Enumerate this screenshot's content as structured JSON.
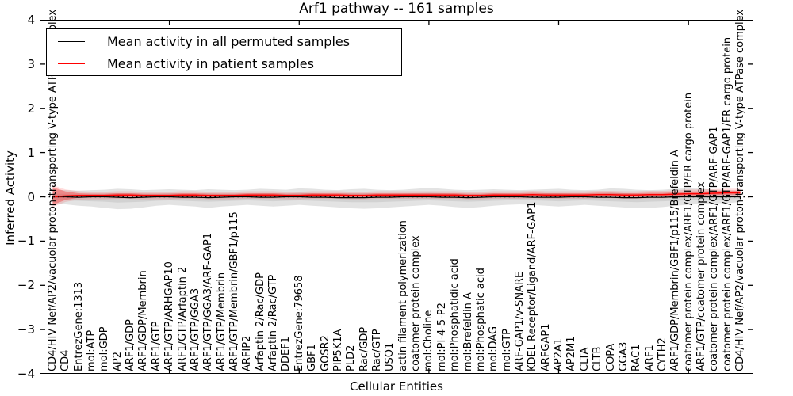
{
  "title": "Arf1 pathway -- 161 samples",
  "axes": {
    "ylabel": "Inferred Activity",
    "xlabel": "Cellular Entities",
    "ylim": [
      -4,
      4
    ],
    "xlim": [
      0,
      55
    ],
    "yticks": [
      {
        "v": 4,
        "label": "4"
      },
      {
        "v": 3,
        "label": "3"
      },
      {
        "v": 2,
        "label": "2"
      },
      {
        "v": 1,
        "label": "1"
      },
      {
        "v": 0,
        "label": "0"
      },
      {
        "v": -1,
        "label": "−1"
      },
      {
        "v": -2,
        "label": "−2"
      },
      {
        "v": -3,
        "label": "−3"
      },
      {
        "v": -4,
        "label": "−4"
      }
    ],
    "xticks": [
      10,
      20,
      30,
      40,
      50
    ],
    "grid": "off"
  },
  "legend": {
    "position": "upper left",
    "entries": [
      {
        "label": "Mean activity in all permuted samples",
        "color": "#000000"
      },
      {
        "label": "Mean activity in patient samples",
        "color": "#ff0000"
      }
    ]
  },
  "colors": {
    "permuted_line": "#000000",
    "patient_line": "#ff0000",
    "permuted_band_outer": "#e3e3e3",
    "permuted_band_inner": "#d2d2d2",
    "patient_band": "rgba(255,0,0,0.30)",
    "patient_halo": "rgba(255,0,0,0.13)"
  },
  "chart_data": {
    "type": "line",
    "title": "Arf1 pathway -- 161 samples",
    "xlabel": "Cellular Entities",
    "ylabel": "Inferred Activity",
    "ylim": [
      -4,
      4
    ],
    "legend_position": "upper left",
    "categories": [
      "CD4/HIV Nef/AP2/vacuolar proton-transporting V-type ATPase complex",
      "CD4",
      "EntrezGene:1313",
      "mol:ATP",
      "mol:GDP",
      "AP2",
      "ARF1/GDP",
      "ARF1/GDP/Membrin",
      "ARF1/GTP",
      "ARF1/GTP/ARHGAP10",
      "ARF1/GTP/Arfaptin 2",
      "ARF1/GTP/GGA3",
      "ARF1/GTP/GGA3/ARF-GAP1",
      "ARF1/GTP/Membrin",
      "ARF1/GTP/Membrin/GBF1/p115",
      "ARFIP2",
      "Arfaptin 2/Rac/GDP",
      "Arfaptin 2/Rac/GTP",
      "DDEF1",
      "EntrezGene:79658",
      "GBF1",
      "GOSR2",
      "PIP5K1A",
      "PLD2",
      "Rac/GDP",
      "Rac/GTP",
      "USO1",
      "actin filament polymerization",
      "coatomer protein complex",
      "mol:Choline",
      "mol:PI-4-5-P2",
      "mol:Phosphatidic acid",
      "mol:Brefeldin A",
      "mol:Phosphatic acid",
      "mol:DAG",
      "mol:GTP",
      "ARF-GAP1/v-SNARE",
      "KDEL Receptor/Ligand/ARF-GAP1",
      "ARFGAP1",
      "AP2A1",
      "AP2M1",
      "CLTA",
      "CLTB",
      "COPA",
      "GGA3",
      "RAC1",
      "ARF1",
      "CYTH2",
      "ARF1/GDP/Membrin/GBF1/p115/Brefeldin A",
      "coatomer protein complex/ARF1/GTP/ER cargo protein",
      "ARF1/GTP/coatomer protein complex",
      "coatomer protein complex/ARF1/GTP/ARF-GAP1",
      "coatomer protein complex/ARF1/GTP/ARF-GAP1/ER cargo protein",
      "CD4/HIV Nef/AP2/vacuolar proton-transporting V-type ATPase complex"
    ],
    "series": [
      {
        "name": "Mean activity in all permuted samples",
        "color": "#000000",
        "values": [
          0,
          0,
          -0.01,
          0,
          0,
          -0.01,
          -0.02,
          -0.01,
          0,
          0,
          -0.01,
          -0.01,
          -0.02,
          -0.01,
          0,
          0,
          -0.01,
          -0.01,
          0,
          0,
          -0.01,
          -0.01,
          -0.02,
          -0.02,
          -0.02,
          -0.01,
          -0.01,
          0,
          0,
          0,
          -0.01,
          -0.01,
          -0.02,
          -0.01,
          0,
          0,
          0,
          -0.01,
          -0.01,
          -0.01,
          0,
          0,
          -0.01,
          -0.01,
          -0.02,
          -0.02,
          -0.01,
          -0.01,
          0,
          0,
          0,
          0,
          0,
          0
        ]
      },
      {
        "name": "Mean activity in patient samples",
        "color": "#ff0000",
        "values": [
          0.0,
          0.02,
          0.03,
          0.03,
          0.03,
          0.04,
          0.04,
          0.03,
          0.03,
          0.03,
          0.04,
          0.04,
          0.03,
          0.03,
          0.03,
          0.04,
          0.04,
          0.04,
          0.03,
          0.03,
          0.04,
          0.04,
          0.04,
          0.03,
          0.03,
          0.04,
          0.04,
          0.04,
          0.04,
          0.04,
          0.04,
          0.04,
          0.03,
          0.03,
          0.04,
          0.04,
          0.04,
          0.05,
          0.04,
          0.04,
          0.04,
          0.04,
          0.05,
          0.05,
          0.04,
          0.04,
          0.05,
          0.05,
          0.06,
          0.07,
          0.07,
          0.08,
          0.09,
          0.09
        ]
      }
    ],
    "bands": {
      "permuted_outer": {
        "hi": [
          0.16,
          0.15,
          0.14,
          0.15,
          0.16,
          0.18,
          0.17,
          0.15,
          0.16,
          0.17,
          0.16,
          0.15,
          0.17,
          0.16,
          0.15,
          0.16,
          0.18,
          0.17,
          0.16,
          0.19,
          0.18,
          0.16,
          0.15,
          0.17,
          0.18,
          0.16,
          0.15,
          0.16,
          0.18,
          0.2,
          0.18,
          0.16,
          0.15,
          0.16,
          0.17,
          0.16,
          0.15,
          0.16,
          0.17,
          0.18,
          0.16,
          0.15,
          0.16,
          0.19,
          0.18,
          0.16,
          0.15,
          0.16,
          0.18,
          0.19,
          0.18,
          0.16,
          0.15,
          0.14
        ],
        "lo": [
          -0.14,
          -0.17,
          -0.2,
          -0.22,
          -0.25,
          -0.28,
          -0.27,
          -0.24,
          -0.2,
          -0.18,
          -0.2,
          -0.22,
          -0.25,
          -0.22,
          -0.2,
          -0.18,
          -0.2,
          -0.22,
          -0.2,
          -0.18,
          -0.2,
          -0.22,
          -0.24,
          -0.26,
          -0.27,
          -0.26,
          -0.24,
          -0.22,
          -0.2,
          -0.18,
          -0.2,
          -0.23,
          -0.25,
          -0.23,
          -0.2,
          -0.18,
          -0.17,
          -0.18,
          -0.2,
          -0.22,
          -0.2,
          -0.18,
          -0.2,
          -0.22,
          -0.24,
          -0.26,
          -0.25,
          -0.23,
          -0.2,
          -0.18,
          -0.16,
          -0.15,
          -0.14,
          -0.12
        ]
      },
      "permuted_inner": {
        "hi": [
          0.07,
          0.07,
          0.06,
          0.07,
          0.07,
          0.08,
          0.08,
          0.07,
          0.07,
          0.08,
          0.07,
          0.07,
          0.08,
          0.07,
          0.07,
          0.07,
          0.08,
          0.08,
          0.07,
          0.09,
          0.08,
          0.07,
          0.07,
          0.08,
          0.08,
          0.07,
          0.07,
          0.07,
          0.08,
          0.09,
          0.08,
          0.07,
          0.07,
          0.07,
          0.08,
          0.07,
          0.07,
          0.07,
          0.08,
          0.08,
          0.07,
          0.07,
          0.07,
          0.09,
          0.08,
          0.07,
          0.07,
          0.07,
          0.08,
          0.09,
          0.08,
          0.07,
          0.07,
          0.06
        ],
        "lo": [
          -0.06,
          -0.08,
          -0.09,
          -0.1,
          -0.11,
          -0.13,
          -0.12,
          -0.11,
          -0.09,
          -0.08,
          -0.09,
          -0.1,
          -0.11,
          -0.1,
          -0.09,
          -0.08,
          -0.09,
          -0.1,
          -0.09,
          -0.08,
          -0.09,
          -0.1,
          -0.11,
          -0.12,
          -0.12,
          -0.12,
          -0.11,
          -0.1,
          -0.09,
          -0.08,
          -0.09,
          -0.1,
          -0.11,
          -0.1,
          -0.09,
          -0.08,
          -0.08,
          -0.08,
          -0.09,
          -0.1,
          -0.09,
          -0.08,
          -0.09,
          -0.1,
          -0.11,
          -0.12,
          -0.11,
          -0.1,
          -0.09,
          -0.08,
          -0.07,
          -0.07,
          -0.06,
          -0.05
        ]
      },
      "patient": {
        "hi": [
          0.22,
          0.12,
          0.08,
          0.07,
          0.07,
          0.08,
          0.08,
          0.07,
          0.07,
          0.07,
          0.08,
          0.08,
          0.07,
          0.07,
          0.07,
          0.08,
          0.08,
          0.08,
          0.07,
          0.07,
          0.08,
          0.08,
          0.08,
          0.07,
          0.07,
          0.08,
          0.08,
          0.08,
          0.08,
          0.08,
          0.08,
          0.08,
          0.07,
          0.07,
          0.08,
          0.08,
          0.08,
          0.09,
          0.08,
          0.08,
          0.08,
          0.08,
          0.09,
          0.09,
          0.08,
          0.08,
          0.09,
          0.09,
          0.1,
          0.12,
          0.12,
          0.13,
          0.14,
          0.14
        ],
        "lo": [
          -0.18,
          -0.07,
          -0.02,
          -0.01,
          -0.01,
          0.0,
          0.0,
          -0.01,
          -0.01,
          -0.01,
          0.0,
          0.0,
          -0.01,
          -0.01,
          -0.01,
          0.0,
          0.0,
          0.0,
          -0.01,
          -0.01,
          0.0,
          0.0,
          0.0,
          -0.01,
          -0.01,
          0.0,
          0.0,
          0.0,
          0.0,
          0.0,
          0.0,
          0.0,
          -0.01,
          -0.01,
          0.0,
          0.0,
          0.0,
          0.01,
          0.0,
          0.0,
          0.0,
          0.0,
          0.01,
          0.01,
          0.0,
          0.0,
          0.01,
          0.01,
          0.02,
          0.03,
          0.03,
          0.04,
          0.05,
          0.05
        ]
      }
    },
    "zero_line": 0
  }
}
